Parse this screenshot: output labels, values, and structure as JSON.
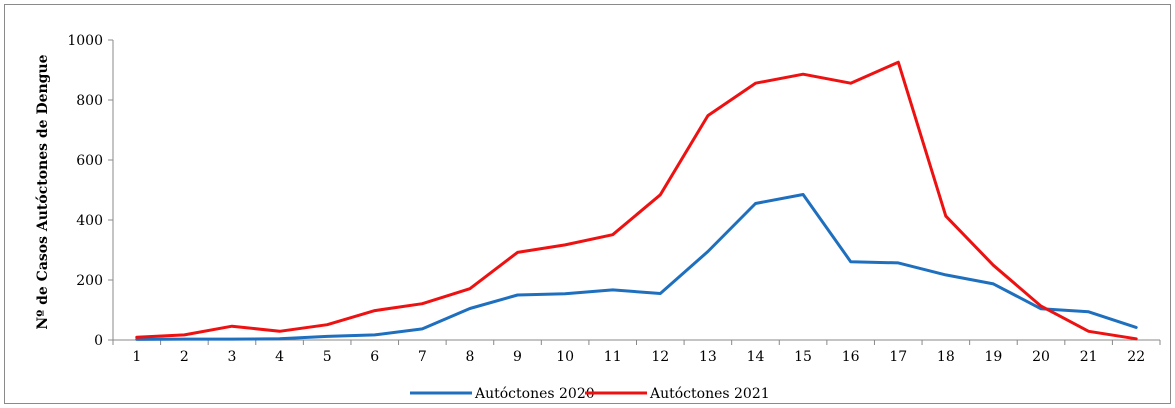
{
  "chart_data": {
    "type": "line",
    "title": "",
    "xlabel": "",
    "ylabel": "Nº de Casos  Autóctones de Dengue",
    "x": [
      "1",
      "2",
      "3",
      "4",
      "5",
      "6",
      "7",
      "8",
      "9",
      "10",
      "11",
      "12",
      "13",
      "14",
      "15",
      "16",
      "17",
      "18",
      "19",
      "20",
      "21",
      "22"
    ],
    "ylim": [
      0,
      1000
    ],
    "yticks": [
      "0",
      "200",
      "400",
      "600",
      "800",
      "1000"
    ],
    "grid": false,
    "legend": "bottom",
    "series": [
      {
        "name": "Autóctones 2020",
        "color": "#1f6fbf",
        "values": [
          2,
          3,
          3,
          4,
          12,
          17,
          37,
          105,
          150,
          154,
          167,
          155,
          295,
          455,
          485,
          261,
          257,
          217,
          187,
          104,
          94,
          42
        ]
      },
      {
        "name": "Autóctones 2021",
        "color": "#ee1111",
        "values": [
          9,
          17,
          46,
          29,
          51,
          98,
          121,
          171,
          292,
          317,
          351,
          484,
          748,
          856,
          886,
          856,
          926,
          413,
          249,
          113,
          29,
          4
        ]
      }
    ]
  }
}
